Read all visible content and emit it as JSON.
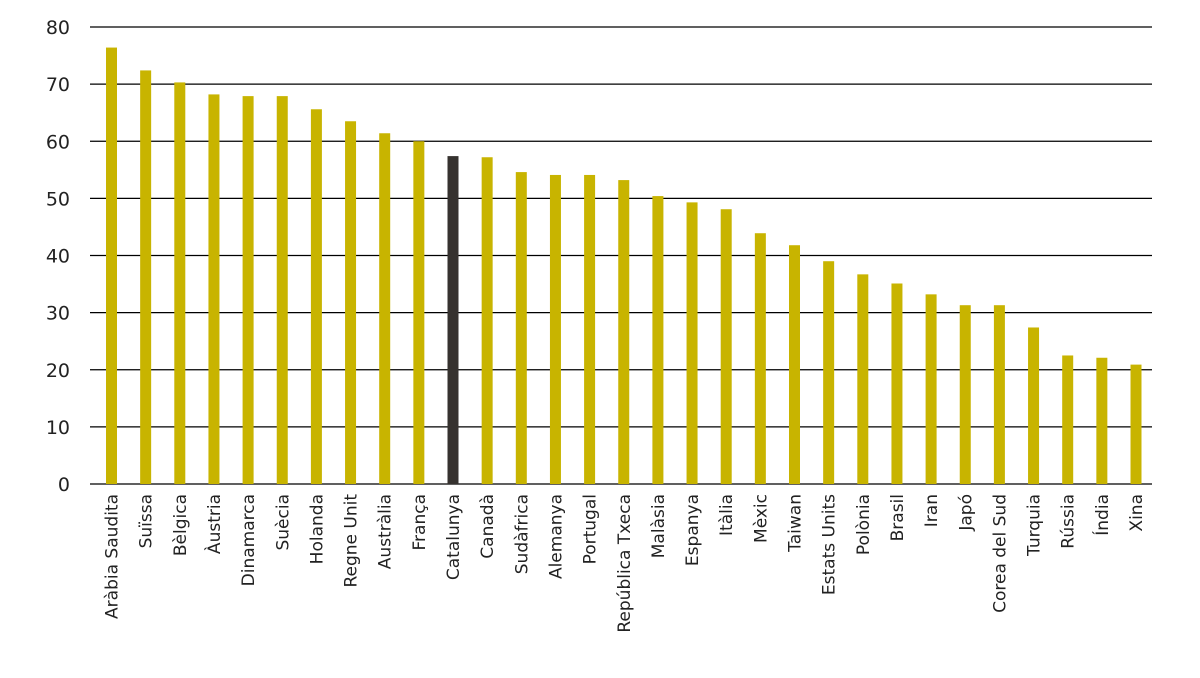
{
  "chart_data": {
    "type": "bar",
    "title": "",
    "xlabel": "",
    "ylabel": "",
    "ylim": [
      0,
      80
    ],
    "yticks": [
      0,
      10,
      20,
      30,
      40,
      50,
      60,
      70,
      80
    ],
    "grid": true,
    "colors": {
      "default": "#c8b400",
      "highlight": "#36322f",
      "grid": "#000000"
    },
    "highlight": "Catalunya",
    "categories": [
      "Aràbia Saudita",
      "Suïssa",
      "Bèlgica",
      "Àustria",
      "Dinamarca",
      "Suècia",
      "Holanda",
      "Regne Unit",
      "Austràlia",
      "França",
      "Catalunya",
      "Canadà",
      "Sudàfrica",
      "Alemanya",
      "Portugal",
      "República Txeca",
      "Malàsia",
      "Espanya",
      "Itàlia",
      "Mèxic",
      "Taiwan",
      "Estats Units",
      "Polònia",
      "Brasil",
      "Iran",
      "Japó",
      "Corea del Sud",
      "Turquia",
      "Rússia",
      "Índia",
      "Xina"
    ],
    "values": [
      76.4,
      72.4,
      70.3,
      68.2,
      67.9,
      67.9,
      65.6,
      63.5,
      61.4,
      60.0,
      57.4,
      57.2,
      54.6,
      54.1,
      54.1,
      53.2,
      50.4,
      49.3,
      48.1,
      43.9,
      41.8,
      39.0,
      36.7,
      35.1,
      33.2,
      31.3,
      31.3,
      27.4,
      22.5,
      22.1,
      20.9
    ]
  }
}
